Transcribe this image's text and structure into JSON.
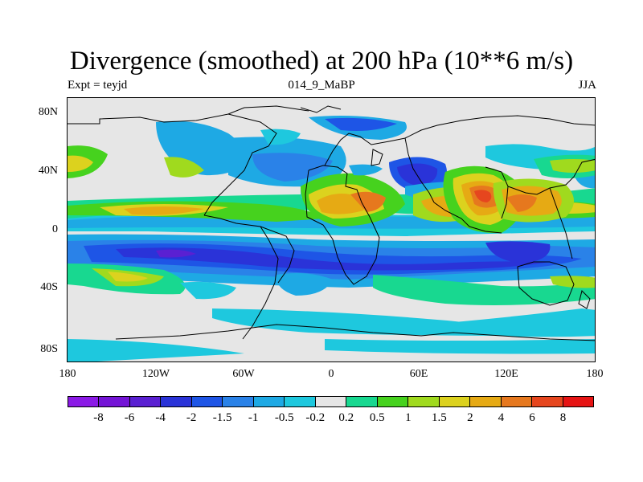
{
  "title": "Divergence (smoothed) at 200 hPa (10**6 m/s)",
  "subtitle_left": "Expt = teyjd",
  "subtitle_center": "014_9_MaBP",
  "subtitle_right": "JJA",
  "y_ticks": [
    "80N",
    "40N",
    "0",
    "40S",
    "80S"
  ],
  "x_ticks": [
    "180",
    "120W",
    "60W",
    "0",
    "60E",
    "120E",
    "180"
  ],
  "colorbar": {
    "colors": [
      "#8b1ae6",
      "#7414d6",
      "#5a20d2",
      "#2a33d8",
      "#1e55e6",
      "#2a82e8",
      "#1ea9e4",
      "#1ec8de",
      "#e6e6e6",
      "#18d890",
      "#46d21e",
      "#a0da1e",
      "#dcd21e",
      "#e6aa14",
      "#e6781e",
      "#e6461e",
      "#e61414"
    ],
    "labels": [
      "-8",
      "-6",
      "-4",
      "-2",
      "-1.5",
      "-1",
      "-0.5",
      "-0.2",
      "0.2",
      "0.5",
      "1",
      "1.5",
      "2",
      "4",
      "6",
      "8"
    ]
  }
}
